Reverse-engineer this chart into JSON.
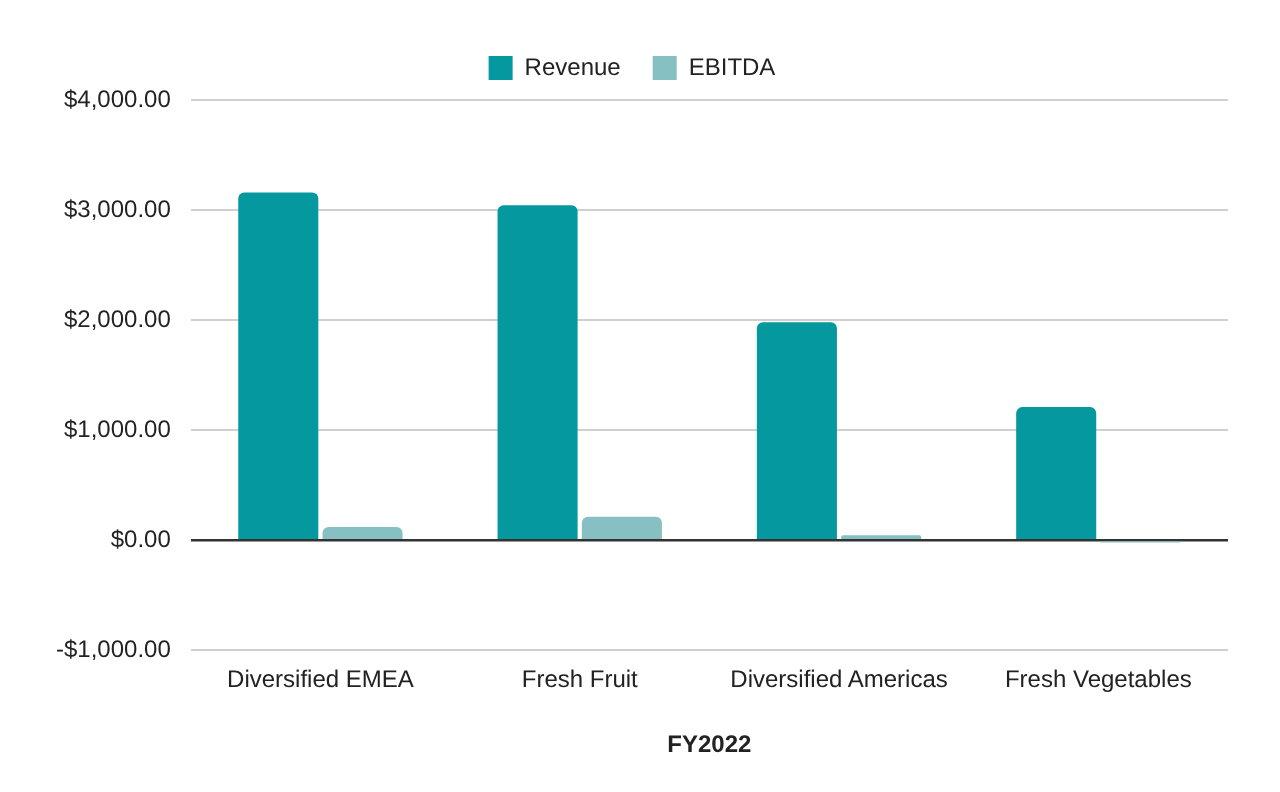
{
  "chart_data": {
    "type": "bar",
    "xlabel": "FY2022",
    "categories": [
      "Diversified EMEA",
      "Fresh Fruit",
      "Diversified Americas",
      "Fresh Vegetables"
    ],
    "series": [
      {
        "name": "Revenue",
        "color": "#05989e",
        "values": [
          3160,
          3045,
          1980,
          1210
        ]
      },
      {
        "name": "EBITDA",
        "color": "#87c0c2",
        "values": [
          120,
          215,
          45,
          -20
        ]
      }
    ],
    "ylim": [
      -1000,
      4000
    ],
    "yticks": [
      {
        "value": -1000,
        "label": "-$1,000.00"
      },
      {
        "value": 0,
        "label": "$0.00"
      },
      {
        "value": 1000,
        "label": "$1,000.00"
      },
      {
        "value": 2000,
        "label": "$2,000.00"
      },
      {
        "value": 3000,
        "label": "$3,000.00"
      },
      {
        "value": 4000,
        "label": "$4,000.00"
      }
    ],
    "grid": "y",
    "legend": "top"
  }
}
